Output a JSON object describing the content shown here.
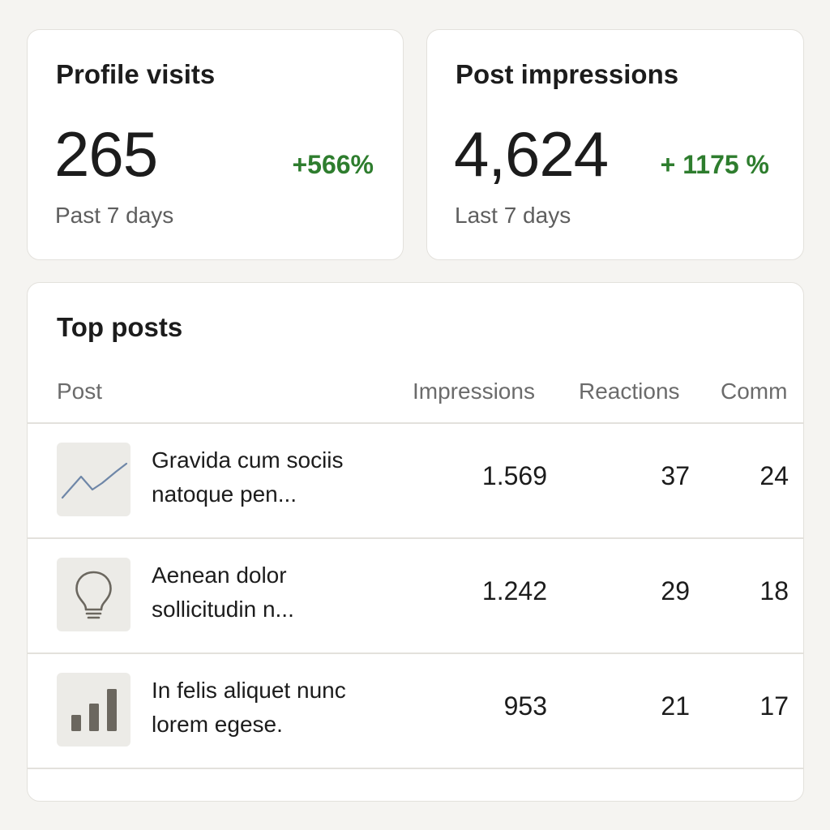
{
  "profile_visits": {
    "title": "Profile visits",
    "value": "265",
    "change": "+566%",
    "period": "Past 7 days"
  },
  "post_impressions": {
    "title": "Post impressions",
    "value": "4,624",
    "change": "+ 1175 %",
    "period": "Last 7 days"
  },
  "top_posts": {
    "title": "Top posts",
    "columns": {
      "post": "Post",
      "impressions": "Impressions",
      "reactions": "Reactions",
      "comments": "Comm"
    },
    "rows": [
      {
        "icon": "line-chart-icon",
        "title": "Gravida cum sociis natoque pen...",
        "impressions": "1.569",
        "reactions": "37",
        "comments": "24"
      },
      {
        "icon": "lightbulb-icon",
        "title": "Aenean dolor sollicitudin n...",
        "impressions": "1.242",
        "reactions": "29",
        "comments": "18"
      },
      {
        "icon": "bar-chart-icon",
        "title": "In felis aliquet nunc lorem egese.",
        "impressions": "953",
        "reactions": "21",
        "comments": "17"
      }
    ]
  },
  "colors": {
    "positive": "#2e7d2e",
    "line_icon": "#6f87a8",
    "bar_icon": "#6b675f"
  }
}
